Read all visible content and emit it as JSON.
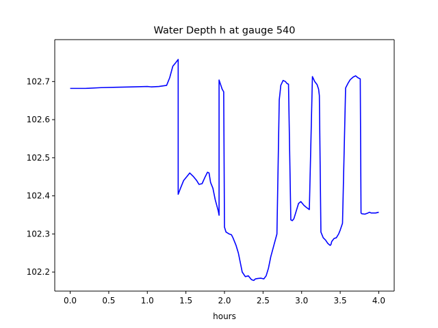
{
  "chart_data": {
    "type": "line",
    "title": "Water Depth h at gauge 540",
    "xlabel": "hours",
    "ylabel": "",
    "xlim": [
      -0.2,
      4.2
    ],
    "ylim": [
      102.15,
      102.81
    ],
    "x_ticks": [
      0.0,
      0.5,
      1.0,
      1.5,
      2.0,
      2.5,
      3.0,
      3.5,
      4.0
    ],
    "x_tick_labels": [
      "0.0",
      "0.5",
      "1.0",
      "1.5",
      "2.0",
      "2.5",
      "3.0",
      "3.5",
      "4.0"
    ],
    "y_ticks": [
      102.2,
      102.3,
      102.4,
      102.5,
      102.6,
      102.7
    ],
    "y_tick_labels": [
      "102.2",
      "102.3",
      "102.4",
      "102.5",
      "102.6",
      "102.7"
    ],
    "grid": false,
    "series": [
      {
        "color": "#0000ff",
        "x": [
          0.0,
          0.2,
          0.4,
          0.6,
          0.8,
          1.0,
          1.05,
          1.15,
          1.25,
          1.29,
          1.33,
          1.37,
          1.4,
          1.4,
          1.43,
          1.47,
          1.51,
          1.55,
          1.6,
          1.64,
          1.67,
          1.71,
          1.75,
          1.78,
          1.8,
          1.82,
          1.85,
          1.88,
          1.92,
          1.93,
          1.93,
          1.97,
          1.99,
          2.0,
          2.02,
          2.06,
          2.09,
          2.11,
          2.15,
          2.18,
          2.2,
          2.23,
          2.27,
          2.31,
          2.35,
          2.38,
          2.4,
          2.43,
          2.47,
          2.51,
          2.54,
          2.57,
          2.6,
          2.64,
          2.68,
          2.71,
          2.72,
          2.73,
          2.76,
          2.79,
          2.81,
          2.83,
          2.86,
          2.88,
          2.88,
          2.9,
          2.93,
          2.96,
          2.99,
          3.03,
          3.06,
          3.1,
          3.14,
          3.17,
          3.2,
          3.22,
          3.23,
          3.25,
          3.28,
          3.31,
          3.34,
          3.37,
          3.38,
          3.39,
          3.42,
          3.45,
          3.48,
          3.5,
          3.53,
          3.57,
          3.6,
          3.63,
          3.67,
          3.7,
          3.73,
          3.76,
          3.77,
          3.78,
          3.82,
          3.86,
          3.88,
          3.9,
          3.91,
          3.92,
          3.93,
          3.96,
          4.0
        ],
        "y": [
          102.682,
          102.682,
          102.684,
          102.685,
          102.686,
          102.687,
          102.686,
          102.687,
          102.69,
          102.71,
          102.74,
          102.75,
          102.758,
          102.404,
          102.42,
          102.44,
          102.45,
          102.46,
          102.45,
          102.44,
          102.43,
          102.432,
          102.45,
          102.462,
          102.46,
          102.435,
          102.42,
          102.39,
          102.36,
          102.349,
          102.704,
          102.68,
          102.673,
          102.318,
          102.305,
          102.3,
          102.298,
          102.29,
          102.27,
          102.25,
          102.23,
          102.2,
          102.188,
          102.19,
          102.18,
          102.178,
          102.182,
          102.183,
          102.184,
          102.182,
          102.19,
          102.21,
          102.24,
          102.27,
          102.3,
          102.652,
          102.67,
          102.69,
          102.703,
          102.7,
          102.695,
          102.693,
          102.337,
          102.335,
          102.335,
          102.34,
          102.36,
          102.38,
          102.385,
          102.375,
          102.37,
          102.364,
          102.713,
          102.7,
          102.692,
          102.68,
          102.663,
          102.305,
          102.29,
          102.284,
          102.275,
          102.27,
          102.272,
          102.28,
          102.288,
          102.29,
          102.3,
          102.31,
          102.328,
          102.683,
          102.695,
          102.705,
          102.712,
          102.715,
          102.71,
          102.707,
          102.355,
          102.353,
          102.352,
          102.355,
          102.357,
          102.355,
          102.355,
          102.355,
          102.355,
          102.355,
          102.357
        ]
      }
    ]
  }
}
